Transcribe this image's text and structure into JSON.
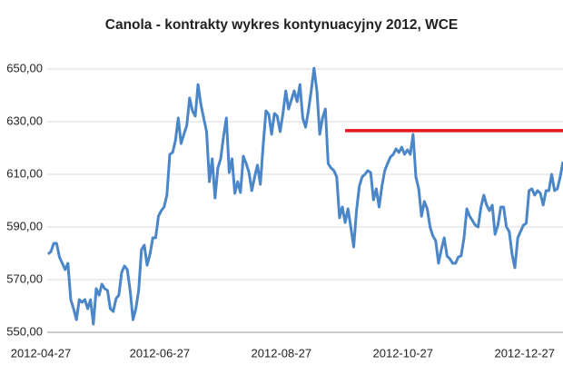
{
  "chart_data": {
    "type": "line",
    "title": "Canola - kontrakty  wykres kontynuacyjny 2012, WCE",
    "categories": [
      "2012-04-27",
      null,
      null,
      null,
      null,
      null,
      null,
      null,
      null,
      null,
      null,
      null,
      null,
      null,
      null,
      null,
      null,
      null,
      null,
      null,
      null,
      null,
      null,
      null,
      null,
      null,
      null,
      null,
      null,
      null,
      null,
      null,
      null,
      null,
      null,
      null,
      null,
      null,
      null,
      null,
      null,
      null,
      "2012-06-27",
      null,
      null,
      null,
      null,
      null,
      null,
      null,
      null,
      null,
      null,
      null,
      null,
      null,
      null,
      null,
      null,
      null,
      null,
      null,
      null,
      null,
      null,
      null,
      null,
      null,
      null,
      null,
      null,
      null,
      null,
      null,
      null,
      null,
      null,
      null,
      null,
      null,
      null,
      null,
      null,
      null,
      null,
      "2012-08-27",
      null,
      null,
      null,
      null,
      null,
      null,
      null,
      null,
      null,
      null,
      null,
      null,
      null,
      null,
      null,
      null,
      null,
      null,
      null,
      null,
      null,
      null,
      null,
      null,
      null,
      null,
      null,
      null,
      null,
      null,
      null,
      null,
      null,
      null,
      null,
      null,
      null,
      null,
      null,
      null,
      null,
      null,
      "2012-10-27",
      null,
      null,
      null,
      null,
      null,
      null,
      null,
      null,
      null,
      null,
      null,
      null,
      null,
      null,
      null,
      null,
      null,
      null,
      null,
      null,
      null,
      null,
      null,
      null,
      null,
      null,
      null,
      null,
      null,
      null,
      null,
      null,
      null,
      null,
      null,
      null,
      null,
      null,
      null,
      null,
      null,
      null,
      "2012-12-27",
      null,
      null,
      null,
      null,
      null,
      null,
      null,
      null,
      null,
      null,
      null
    ],
    "series": [
      {
        "color": "#4a86c8",
        "values": [
          579.7,
          580.7,
          583.8,
          583.8,
          578.6,
          576.2,
          573.8,
          576.2,
          562.4,
          559.0,
          554.8,
          562.4,
          561.4,
          562.4,
          559.0,
          562.4,
          553.1,
          566.6,
          564.1,
          568.3,
          566.6,
          565.9,
          559.0,
          557.9,
          562.8,
          564.1,
          572.8,
          575.2,
          573.8,
          565.9,
          554.8,
          559.0,
          565.9,
          581.4,
          583.1,
          575.5,
          579.7,
          585.9,
          585.9,
          594.1,
          596.2,
          597.6,
          602.1,
          617.6,
          618.3,
          622.8,
          631.4,
          621.7,
          625.2,
          628.6,
          639.0,
          634.1,
          632.1,
          644.1,
          636.6,
          631.4,
          626.2,
          607.2,
          615.9,
          601.0,
          612.4,
          615.9,
          624.5,
          631.4,
          610.7,
          615.9,
          602.8,
          607.2,
          603.1,
          616.9,
          614.1,
          610.7,
          603.8,
          609.0,
          613.5,
          606.2,
          621.0,
          634.1,
          632.8,
          625.2,
          633.1,
          632.1,
          626.2,
          633.1,
          641.7,
          634.8,
          638.3,
          641.7,
          637.6,
          644.1,
          631.4,
          627.9,
          634.1,
          641.7,
          650.3,
          641.7,
          625.2,
          631.4,
          634.8,
          614.1,
          612.4,
          611.4,
          609.0,
          593.5,
          597.6,
          591.7,
          596.9,
          590.0,
          582.4,
          596.2,
          605.5,
          609.0,
          610.0,
          611.4,
          610.7,
          600.3,
          604.5,
          597.6,
          605.5,
          611.4,
          614.1,
          616.6,
          617.6,
          619.7,
          618.3,
          620.3,
          617.6,
          619.3,
          617.6,
          625.2,
          609.0,
          604.5,
          594.1,
          599.7,
          596.9,
          590.0,
          586.6,
          584.8,
          576.2,
          581.4,
          585.9,
          579.0,
          577.9,
          576.2,
          576.2,
          578.6,
          579.0,
          585.9,
          596.9,
          594.1,
          592.4,
          590.7,
          590.0,
          597.6,
          602.1,
          598.3,
          596.2,
          598.3,
          587.2,
          590.7,
          597.6,
          597.6,
          590.0,
          588.3,
          579.7,
          574.5,
          585.9,
          588.3,
          590.7,
          591.4,
          603.8,
          604.5,
          602.1,
          603.8,
          602.8,
          598.3,
          603.8,
          603.8,
          610.0,
          603.8,
          604.5,
          609.0,
          614.8
        ]
      },
      {
        "color": "#e8131b",
        "values": [
          null,
          null,
          null,
          null,
          null,
          null,
          null,
          null,
          null,
          null,
          null,
          null,
          null,
          null,
          null,
          null,
          null,
          null,
          null,
          null,
          null,
          null,
          null,
          null,
          null,
          null,
          null,
          null,
          null,
          null,
          null,
          null,
          null,
          null,
          null,
          null,
          null,
          null,
          null,
          null,
          null,
          null,
          null,
          null,
          null,
          null,
          null,
          null,
          null,
          null,
          null,
          null,
          null,
          null,
          null,
          null,
          null,
          null,
          null,
          null,
          null,
          null,
          null,
          null,
          null,
          null,
          null,
          null,
          null,
          null,
          null,
          null,
          null,
          null,
          null,
          null,
          null,
          null,
          null,
          null,
          null,
          null,
          null,
          null,
          null,
          null,
          null,
          null,
          null,
          null,
          null,
          null,
          null,
          null,
          null,
          null,
          null,
          null,
          null,
          null,
          null,
          null,
          null,
          null,
          null,
          626.6,
          626.6,
          626.6,
          626.6,
          626.6,
          626.6,
          626.6,
          626.6,
          626.6,
          626.6,
          626.6,
          626.6,
          626.6,
          626.6,
          626.6,
          626.6,
          626.6,
          626.6,
          626.6,
          626.6,
          626.6,
          626.6,
          626.6,
          626.6,
          626.6,
          626.6,
          626.6,
          626.6,
          626.6,
          626.6,
          626.6,
          626.6,
          626.6,
          626.6,
          626.6,
          626.6,
          626.6,
          626.6,
          626.6,
          626.6,
          626.6,
          626.6,
          626.6,
          626.6,
          626.6,
          626.6,
          626.6,
          626.6,
          626.6,
          626.6,
          626.6,
          626.6,
          626.6,
          626.6,
          626.6,
          626.6,
          626.6,
          626.6,
          626.6,
          626.6,
          626.6,
          626.6,
          626.6,
          626.6,
          626.6,
          626.6,
          626.6,
          626.6,
          626.6,
          626.6,
          626.6,
          626.6,
          626.6,
          626.6,
          626.6,
          626.6,
          626.6,
          626.6
        ]
      }
    ],
    "ylim": [
      550,
      650
    ],
    "yticks": [
      {
        "value": 550,
        "label": "550,00"
      },
      {
        "value": 570,
        "label": "570,00"
      },
      {
        "value": 590,
        "label": "590,00"
      },
      {
        "value": 610,
        "label": "610,00"
      },
      {
        "value": 630,
        "label": "630,00"
      },
      {
        "value": 650,
        "label": "650,00"
      }
    ],
    "grid": true
  }
}
